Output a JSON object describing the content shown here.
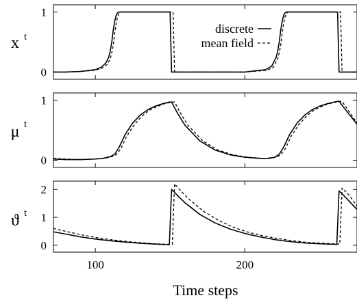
{
  "chart_data": [
    {
      "type": "line",
      "ylabel": "x",
      "ylabel_sup": "t",
      "xlim": [
        72,
        275
      ],
      "ylim": [
        -0.12,
        1.12
      ],
      "yticks": [
        0,
        1
      ],
      "legend": {
        "placement": "top-right",
        "entries": [
          {
            "label": "discrete",
            "style": "solid"
          },
          {
            "label": "mean field",
            "style": "dashed"
          }
        ]
      },
      "series": [
        {
          "name": "discrete",
          "style": "solid",
          "x": [
            72,
            80,
            90,
            100,
            104,
            107,
            109,
            110,
            111,
            112,
            113,
            114,
            115,
            116,
            150,
            150.5,
            151,
            200,
            214,
            218,
            221,
            222,
            223,
            224,
            225,
            226,
            227,
            228,
            262,
            262.5,
            263,
            275
          ],
          "y": [
            0,
            0,
            0.01,
            0.04,
            0.08,
            0.15,
            0.25,
            0.35,
            0.5,
            0.7,
            0.85,
            0.95,
            0.99,
            1,
            1,
            0.5,
            0,
            0,
            0.04,
            0.1,
            0.25,
            0.35,
            0.5,
            0.7,
            0.85,
            0.95,
            0.99,
            1,
            1,
            0.5,
            0,
            0
          ]
        },
        {
          "name": "mean field",
          "style": "dashed",
          "x": [
            72,
            80,
            90,
            100,
            105,
            108,
            110,
            111,
            112,
            113,
            114,
            115,
            116,
            117,
            152,
            152.5,
            153,
            200,
            215,
            219,
            222,
            223,
            224,
            225,
            226,
            227,
            228,
            229,
            264,
            264.5,
            265,
            275
          ],
          "y": [
            0,
            0,
            0.01,
            0.03,
            0.07,
            0.13,
            0.22,
            0.32,
            0.45,
            0.65,
            0.82,
            0.93,
            0.98,
            1,
            1,
            0.5,
            0,
            0,
            0.03,
            0.08,
            0.22,
            0.32,
            0.45,
            0.65,
            0.82,
            0.93,
            0.98,
            1,
            1,
            0.5,
            0,
            0
          ]
        }
      ]
    },
    {
      "type": "line",
      "ylabel": "μ",
      "ylabel_sup": "t",
      "xlim": [
        72,
        275
      ],
      "ylim": [
        -0.12,
        1.12
      ],
      "yticks": [
        0,
        1
      ],
      "series": [
        {
          "name": "discrete",
          "style": "solid",
          "x": [
            72,
            80,
            90,
            100,
            105,
            110,
            113,
            116,
            120,
            125,
            130,
            135,
            140,
            145,
            150,
            151,
            155,
            160,
            170,
            180,
            190,
            200,
            210,
            215,
            220,
            223,
            226,
            230,
            235,
            240,
            245,
            250,
            255,
            262,
            263,
            268,
            275
          ],
          "y": [
            0.02,
            0.01,
            0.01,
            0.02,
            0.03,
            0.06,
            0.1,
            0.22,
            0.43,
            0.62,
            0.75,
            0.84,
            0.9,
            0.94,
            0.97,
            0.97,
            0.78,
            0.58,
            0.32,
            0.17,
            0.09,
            0.05,
            0.03,
            0.03,
            0.05,
            0.1,
            0.22,
            0.43,
            0.62,
            0.75,
            0.84,
            0.9,
            0.94,
            0.98,
            0.98,
            0.82,
            0.6
          ]
        },
        {
          "name": "mean field",
          "style": "dashed",
          "x": [
            72,
            80,
            90,
            100,
            105,
            110,
            114,
            117,
            121,
            126,
            131,
            136,
            141,
            146,
            152,
            153,
            157,
            162,
            172,
            182,
            192,
            202,
            212,
            217,
            221,
            224,
            227,
            231,
            236,
            241,
            246,
            251,
            256,
            264,
            265,
            270,
            275
          ],
          "y": [
            0.03,
            0.02,
            0.01,
            0.02,
            0.03,
            0.05,
            0.09,
            0.19,
            0.4,
            0.59,
            0.73,
            0.83,
            0.89,
            0.94,
            0.97,
            0.97,
            0.78,
            0.58,
            0.32,
            0.17,
            0.09,
            0.05,
            0.03,
            0.03,
            0.05,
            0.09,
            0.19,
            0.4,
            0.59,
            0.73,
            0.83,
            0.89,
            0.94,
            0.98,
            0.98,
            0.8,
            0.62
          ]
        }
      ]
    },
    {
      "type": "line",
      "ylabel": "ϑ",
      "ylabel_sup": "t",
      "xlabel": "Time steps",
      "xlim": [
        72,
        275
      ],
      "ylim": [
        -0.25,
        2.3
      ],
      "yticks": [
        0,
        1,
        2
      ],
      "xticks": [
        100,
        200
      ],
      "series": [
        {
          "name": "discrete",
          "style": "solid",
          "x": [
            72,
            80,
            90,
            100,
            110,
            120,
            130,
            140,
            148,
            149.5,
            151,
            152,
            155,
            160,
            170,
            180,
            190,
            200,
            210,
            220,
            230,
            240,
            250,
            260,
            261.5,
            263,
            264,
            268,
            275
          ],
          "y": [
            0.48,
            0.4,
            0.3,
            0.22,
            0.16,
            0.11,
            0.07,
            0.04,
            0.02,
            0.02,
            2.0,
            1.95,
            1.78,
            1.52,
            1.1,
            0.8,
            0.58,
            0.42,
            0.3,
            0.2,
            0.13,
            0.08,
            0.05,
            0.03,
            0.03,
            1.95,
            1.9,
            1.68,
            1.28
          ]
        },
        {
          "name": "mean field",
          "style": "dashed",
          "x": [
            72,
            80,
            90,
            100,
            110,
            120,
            130,
            140,
            150,
            151.5,
            153,
            154,
            157,
            162,
            172,
            182,
            192,
            202,
            212,
            222,
            232,
            242,
            252,
            262,
            263.5,
            265,
            266,
            270,
            275
          ],
          "y": [
            0.6,
            0.5,
            0.38,
            0.28,
            0.2,
            0.14,
            0.09,
            0.05,
            0.03,
            0.03,
            2.2,
            2.14,
            1.96,
            1.68,
            1.23,
            0.9,
            0.65,
            0.47,
            0.34,
            0.24,
            0.16,
            0.1,
            0.07,
            0.04,
            0.04,
            2.05,
            2.0,
            1.78,
            1.4
          ]
        }
      ]
    }
  ]
}
